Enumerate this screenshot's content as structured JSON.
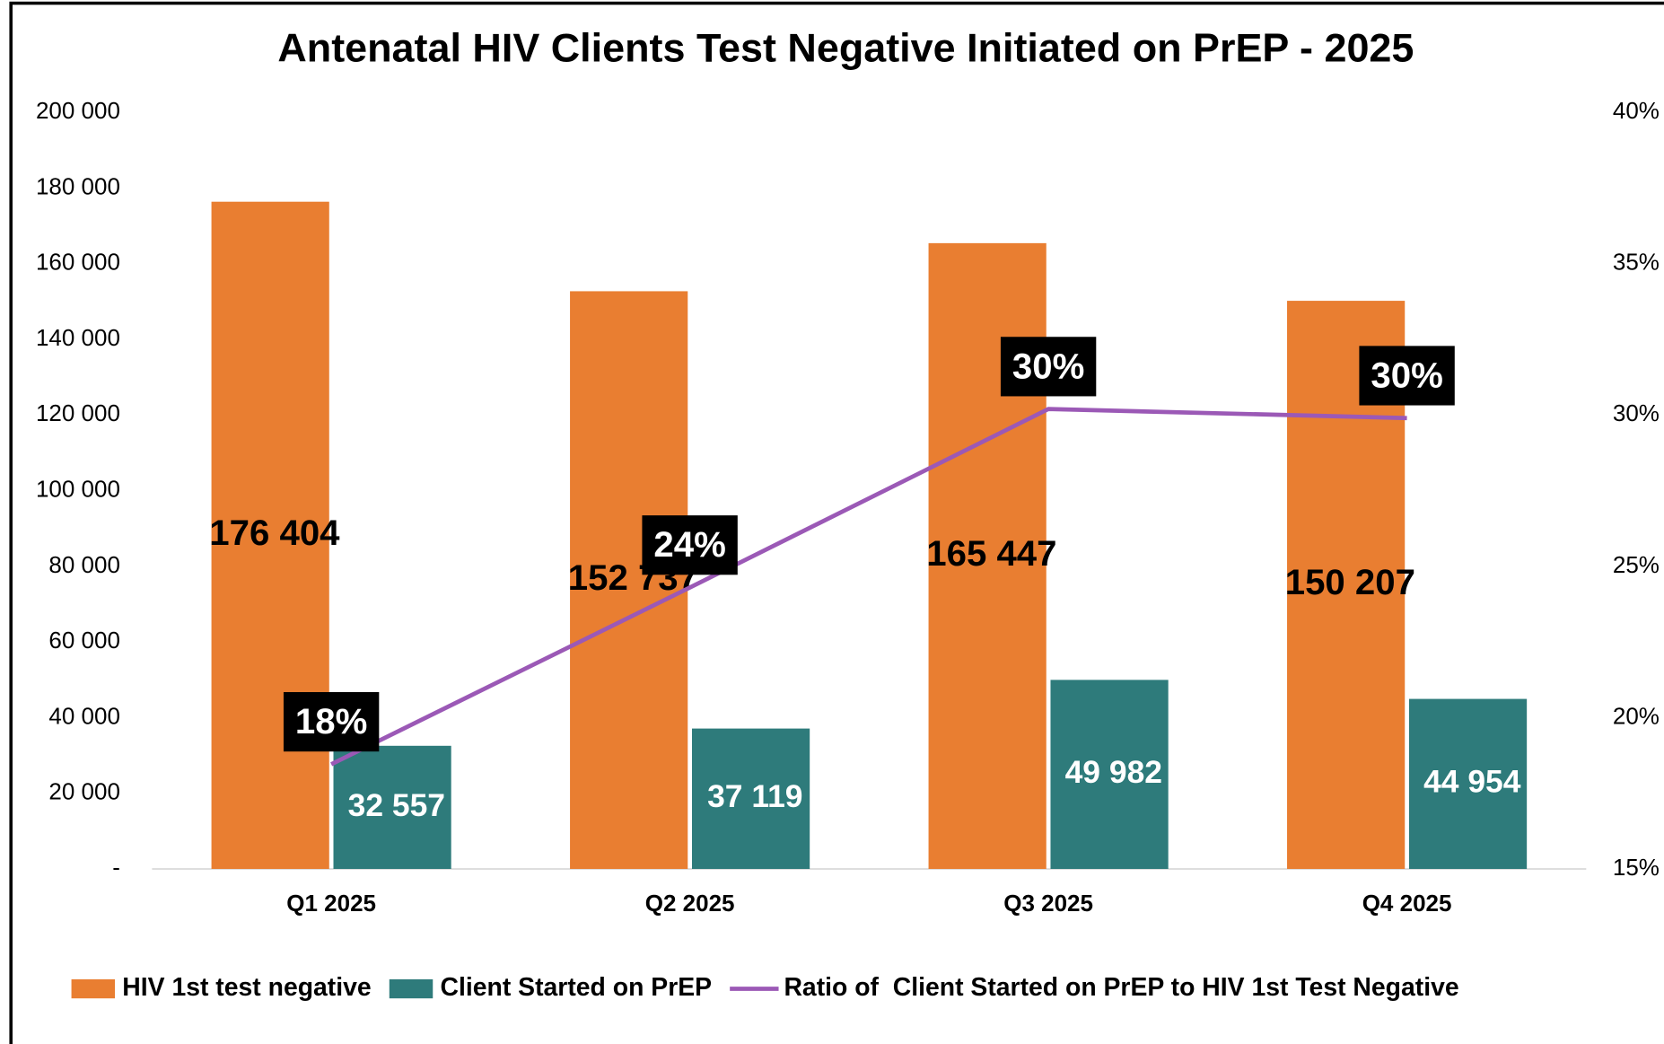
{
  "chart_data": {
    "type": "bar",
    "title": "Antenatal HIV Clients Test Negative Initiated on PrEP - 2025",
    "categories": [
      "Q1 2025",
      "Q2 2025",
      "Q3 2025",
      "Q4 2025"
    ],
    "series": [
      {
        "name": "HIV 1st test negative",
        "color": "#e97e31",
        "type": "bar",
        "values": [
          176404,
          152737,
          165447,
          150207
        ],
        "value_labels": [
          "176 404",
          "152 737",
          "165 447",
          "150 207"
        ]
      },
      {
        "name": "Client Started on PrEP",
        "color": "#2e7b7b",
        "type": "bar",
        "values": [
          32557,
          37119,
          49982,
          44954
        ],
        "value_labels": [
          "32 557",
          "37 119",
          "49 982",
          "44 954"
        ]
      },
      {
        "name": "Ratio of  Client Started on PrEP to HIV 1st Test Negative",
        "color": "#9b59b6",
        "type": "line",
        "axis": "y2",
        "values": [
          18.46,
          24.3,
          30.2,
          29.9
        ],
        "value_labels": [
          "18%",
          "24%",
          "30%",
          "30%"
        ]
      }
    ],
    "ylim": [
      0,
      200000
    ],
    "yticks": [
      {
        "value": 0,
        "label": "-"
      },
      {
        "value": 20000,
        "label": "20 000"
      },
      {
        "value": 40000,
        "label": "40 000"
      },
      {
        "value": 60000,
        "label": "60 000"
      },
      {
        "value": 80000,
        "label": "80 000"
      },
      {
        "value": 100000,
        "label": "100 000"
      },
      {
        "value": 120000,
        "label": "120 000"
      },
      {
        "value": 140000,
        "label": "140 000"
      },
      {
        "value": 160000,
        "label": "160 000"
      },
      {
        "value": 180000,
        "label": "180 000"
      },
      {
        "value": 200000,
        "label": "200 000"
      }
    ],
    "y2lim": [
      15,
      40
    ],
    "y2ticks": [
      {
        "value": 15,
        "label": "15%"
      },
      {
        "value": 20,
        "label": "20%"
      },
      {
        "value": 25,
        "label": "25%"
      },
      {
        "value": 30,
        "label": "30%"
      },
      {
        "value": 35,
        "label": "35%"
      },
      {
        "value": 40,
        "label": "40%"
      }
    ],
    "grid": false,
    "legend": "bottom"
  }
}
